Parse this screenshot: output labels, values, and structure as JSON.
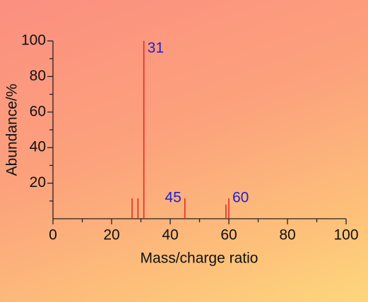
{
  "chart_data": {
    "type": "stem",
    "x_label": "Mass/charge ratio",
    "y_label": "Abundance/%",
    "x": [
      27,
      29,
      31,
      45,
      59,
      60
    ],
    "values": [
      11.5,
      11.5,
      100,
      11.5,
      8,
      11.5
    ],
    "color": "#e8282a",
    "annotations": [
      31,
      45,
      60
    ],
    "annotation_color": "#2020d0",
    "xlim": [
      0,
      100
    ],
    "xticks": [
      0,
      20,
      40,
      60,
      80,
      100
    ],
    "xminor": [
      10,
      30,
      50,
      70,
      90
    ],
    "ylim": [
      0,
      100
    ],
    "yticks": [
      20,
      40,
      60,
      80,
      100
    ],
    "yminor": [
      10,
      30,
      50,
      70,
      90
    ]
  }
}
